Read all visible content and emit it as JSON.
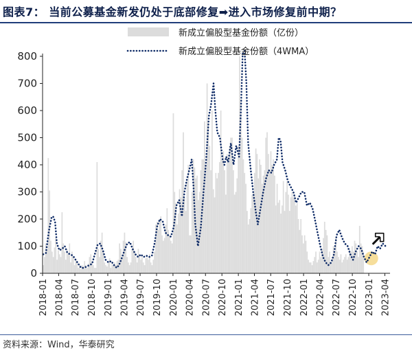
{
  "title": "图表7： 当前公募基金新发仍处于底部修复➡进入市场修复前中期？",
  "source": "资料来源：Wind，华泰研究",
  "colors": {
    "bars": "#dcdcdc",
    "line": "#0d2a66",
    "axis": "#222222",
    "highlight": "#f5d88a",
    "title": "#0d1f4a"
  },
  "icons": {
    "arrow": "hollow-arrow-up-right-icon"
  },
  "chart_data": {
    "type": "bar+line",
    "ylim": [
      0,
      800
    ],
    "yticks": [
      0,
      100,
      200,
      300,
      400,
      500,
      600,
      700,
      800
    ],
    "xlabel": "",
    "ylabel": "",
    "xticks": [
      "2018-01",
      "2018-04",
      "2018-07",
      "2018-10",
      "2019-01",
      "2019-04",
      "2019-07",
      "2019-10",
      "2020-01",
      "2020-04",
      "2020-07",
      "2020-10",
      "2021-01",
      "2021-04",
      "2021-07",
      "2021-10",
      "2022-01",
      "2022-04",
      "2022-07",
      "2022-10",
      "2023-01",
      "2023-04"
    ],
    "x_start": "2018-01-01",
    "x_end": "2023-04-30",
    "legend": [
      {
        "name": "新成立偏股型基金份额（亿份）",
        "style": "bar"
      },
      {
        "name": "新成立偏股型基金份额（4WMA）",
        "style": "dotted-line"
      }
    ],
    "series": [
      {
        "name": "新成立偏股型基金份额（亿份）",
        "type": "bar",
        "weekly_from": "2018-01-05",
        "values": [
          30,
          60,
          110,
          90,
          425,
          305,
          120,
          80,
          60,
          95,
          130,
          50,
          85,
          70,
          60,
          225,
          110,
          80,
          50,
          90,
          70,
          110,
          40,
          80,
          60,
          30,
          50,
          40,
          20,
          30,
          15,
          30,
          25,
          45,
          30,
          20,
          35,
          60,
          70,
          40,
          30,
          20,
          20,
          410,
          90,
          60,
          120,
          150,
          80,
          40,
          30,
          25,
          40,
          55,
          20,
          35,
          30,
          40,
          30,
          45,
          50,
          110,
          90,
          60,
          120,
          150,
          115,
          60,
          40,
          30,
          40,
          90,
          120,
          80,
          60,
          40,
          90,
          70,
          50,
          60,
          40,
          30,
          55,
          60,
          50,
          70,
          40,
          30,
          50,
          80,
          180,
          190,
          160,
          200,
          210,
          140,
          120,
          130,
          180,
          240,
          160,
          140,
          120,
          110,
          590,
          300,
          260,
          180,
          220,
          310,
          280,
          380,
          520,
          280,
          230,
          340,
          400,
          140,
          140,
          300,
          420,
          390,
          350,
          360,
          270,
          300,
          380,
          420,
          420,
          560,
          400,
          700,
          560,
          470,
          380,
          600,
          310,
          280,
          370,
          350,
          370,
          410,
          600,
          420,
          450,
          380,
          290,
          440,
          420,
          470,
          500,
          500,
          380,
          290,
          300,
          350,
          470,
          800,
          640,
          500,
          420,
          370,
          330,
          230,
          180,
          200,
          240,
          290,
          300,
          370,
          460,
          440,
          350,
          420,
          400,
          330,
          360,
          380,
          500,
          520,
          440,
          380,
          450,
          400,
          420,
          360,
          250,
          330,
          260,
          270,
          220,
          250,
          340,
          230,
          300,
          340,
          290,
          230,
          280,
          300,
          280,
          290,
          250,
          260,
          200,
          160,
          200,
          140,
          110,
          140,
          120,
          80,
          50,
          40,
          40,
          30,
          45,
          60,
          80,
          40,
          50,
          80,
          60,
          90,
          130,
          190,
          160,
          140,
          60,
          80,
          40,
          60,
          100,
          80,
          130,
          80,
          60,
          50,
          70,
          40,
          50,
          60,
          70,
          50,
          60,
          90,
          80,
          100,
          80,
          120,
          110,
          80,
          60,
          175,
          110,
          100,
          80
        ]
      },
      {
        "name": "新成立偏股型基金份额（4WMA）",
        "type": "line",
        "points": [
          [
            "2018-01-05",
            70
          ],
          [
            "2018-01-20",
            75
          ],
          [
            "2018-02-05",
            155
          ],
          [
            "2018-02-20",
            205
          ],
          [
            "2018-03-01",
            210
          ],
          [
            "2018-03-12",
            190
          ],
          [
            "2018-03-22",
            110
          ],
          [
            "2018-04-05",
            85
          ],
          [
            "2018-04-20",
            90
          ],
          [
            "2018-05-05",
            100
          ],
          [
            "2018-05-20",
            75
          ],
          [
            "2018-06-05",
            70
          ],
          [
            "2018-06-20",
            65
          ],
          [
            "2018-07-05",
            50
          ],
          [
            "2018-07-20",
            35
          ],
          [
            "2018-08-05",
            20
          ],
          [
            "2018-08-20",
            20
          ],
          [
            "2018-09-05",
            25
          ],
          [
            "2018-09-20",
            30
          ],
          [
            "2018-10-05",
            35
          ],
          [
            "2018-10-20",
            70
          ],
          [
            "2018-11-05",
            105
          ],
          [
            "2018-11-20",
            110
          ],
          [
            "2018-12-05",
            85
          ],
          [
            "2018-12-20",
            50
          ],
          [
            "2019-01-05",
            40
          ],
          [
            "2019-01-20",
            45
          ],
          [
            "2019-02-05",
            30
          ],
          [
            "2019-02-20",
            20
          ],
          [
            "2019-03-05",
            30
          ],
          [
            "2019-03-20",
            55
          ],
          [
            "2019-04-05",
            85
          ],
          [
            "2019-04-20",
            110
          ],
          [
            "2019-05-05",
            115
          ],
          [
            "2019-05-20",
            90
          ],
          [
            "2019-06-05",
            70
          ],
          [
            "2019-06-20",
            60
          ],
          [
            "2019-07-05",
            70
          ],
          [
            "2019-07-20",
            60
          ],
          [
            "2019-08-05",
            65
          ],
          [
            "2019-08-20",
            60
          ],
          [
            "2019-09-05",
            65
          ],
          [
            "2019-09-20",
            110
          ],
          [
            "2019-10-05",
            175
          ],
          [
            "2019-10-20",
            200
          ],
          [
            "2019-11-05",
            190
          ],
          [
            "2019-11-20",
            150
          ],
          [
            "2019-12-05",
            140
          ],
          [
            "2019-12-20",
            135
          ],
          [
            "2020-01-05",
            170
          ],
          [
            "2020-01-20",
            250
          ],
          [
            "2020-02-05",
            270
          ],
          [
            "2020-02-20",
            210
          ],
          [
            "2020-03-05",
            300
          ],
          [
            "2020-03-20",
            350
          ],
          [
            "2020-04-01",
            380
          ],
          [
            "2020-04-15",
            420
          ],
          [
            "2020-04-25",
            320
          ],
          [
            "2020-05-05",
            180
          ],
          [
            "2020-05-20",
            100
          ],
          [
            "2020-06-05",
            170
          ],
          [
            "2020-06-20",
            300
          ],
          [
            "2020-07-05",
            420
          ],
          [
            "2020-07-20",
            580
          ],
          [
            "2020-08-01",
            620
          ],
          [
            "2020-08-15",
            700
          ],
          [
            "2020-08-25",
            600
          ],
          [
            "2020-09-05",
            520
          ],
          [
            "2020-09-20",
            500
          ],
          [
            "2020-10-05",
            420
          ],
          [
            "2020-10-15",
            400
          ],
          [
            "2020-10-25",
            430
          ],
          [
            "2020-11-05",
            410
          ],
          [
            "2020-11-20",
            480
          ],
          [
            "2020-12-05",
            400
          ],
          [
            "2020-12-20",
            470
          ],
          [
            "2021-01-05",
            430
          ],
          [
            "2021-01-15",
            600
          ],
          [
            "2021-01-25",
            810
          ],
          [
            "2021-02-05",
            820
          ],
          [
            "2021-02-15",
            700
          ],
          [
            "2021-02-25",
            480
          ],
          [
            "2021-03-10",
            390
          ],
          [
            "2021-03-25",
            300
          ],
          [
            "2021-04-10",
            220
          ],
          [
            "2021-04-20",
            180
          ],
          [
            "2021-05-05",
            240
          ],
          [
            "2021-05-20",
            300
          ],
          [
            "2021-06-05",
            350
          ],
          [
            "2021-06-20",
            380
          ],
          [
            "2021-07-05",
            370
          ],
          [
            "2021-07-20",
            400
          ],
          [
            "2021-08-05",
            420
          ],
          [
            "2021-08-15",
            500
          ],
          [
            "2021-08-25",
            490
          ],
          [
            "2021-09-05",
            410
          ],
          [
            "2021-09-20",
            380
          ],
          [
            "2021-10-05",
            340
          ],
          [
            "2021-10-20",
            320
          ],
          [
            "2021-11-05",
            300
          ],
          [
            "2021-11-20",
            260
          ],
          [
            "2021-12-05",
            280
          ],
          [
            "2021-12-20",
            300
          ],
          [
            "2022-01-05",
            300
          ],
          [
            "2022-01-20",
            250
          ],
          [
            "2022-02-05",
            260
          ],
          [
            "2022-02-20",
            240
          ],
          [
            "2022-03-05",
            200
          ],
          [
            "2022-03-20",
            150
          ],
          [
            "2022-04-05",
            100
          ],
          [
            "2022-04-20",
            60
          ],
          [
            "2022-05-05",
            40
          ],
          [
            "2022-05-20",
            30
          ],
          [
            "2022-06-05",
            40
          ],
          [
            "2022-06-20",
            70
          ],
          [
            "2022-07-05",
            140
          ],
          [
            "2022-07-20",
            160
          ],
          [
            "2022-08-05",
            130
          ],
          [
            "2022-08-20",
            110
          ],
          [
            "2022-09-05",
            100
          ],
          [
            "2022-09-20",
            70
          ],
          [
            "2022-10-05",
            50
          ],
          [
            "2022-10-20",
            80
          ],
          [
            "2022-11-05",
            100
          ],
          [
            "2022-11-20",
            90
          ],
          [
            "2022-12-05",
            60
          ],
          [
            "2022-12-20",
            40
          ],
          [
            "2023-01-05",
            60
          ],
          [
            "2023-01-20",
            80
          ],
          [
            "2023-02-05",
            70
          ],
          [
            "2023-02-20",
            100
          ],
          [
            "2023-03-05",
            90
          ],
          [
            "2023-03-20",
            110
          ],
          [
            "2023-04-05",
            100
          ]
        ]
      }
    ],
    "annotations": [
      {
        "type": "highlight-circle",
        "x": "2023-01-15",
        "y": 55
      },
      {
        "type": "arrow-icon",
        "x": "2023-02-15",
        "y": 135
      }
    ]
  }
}
